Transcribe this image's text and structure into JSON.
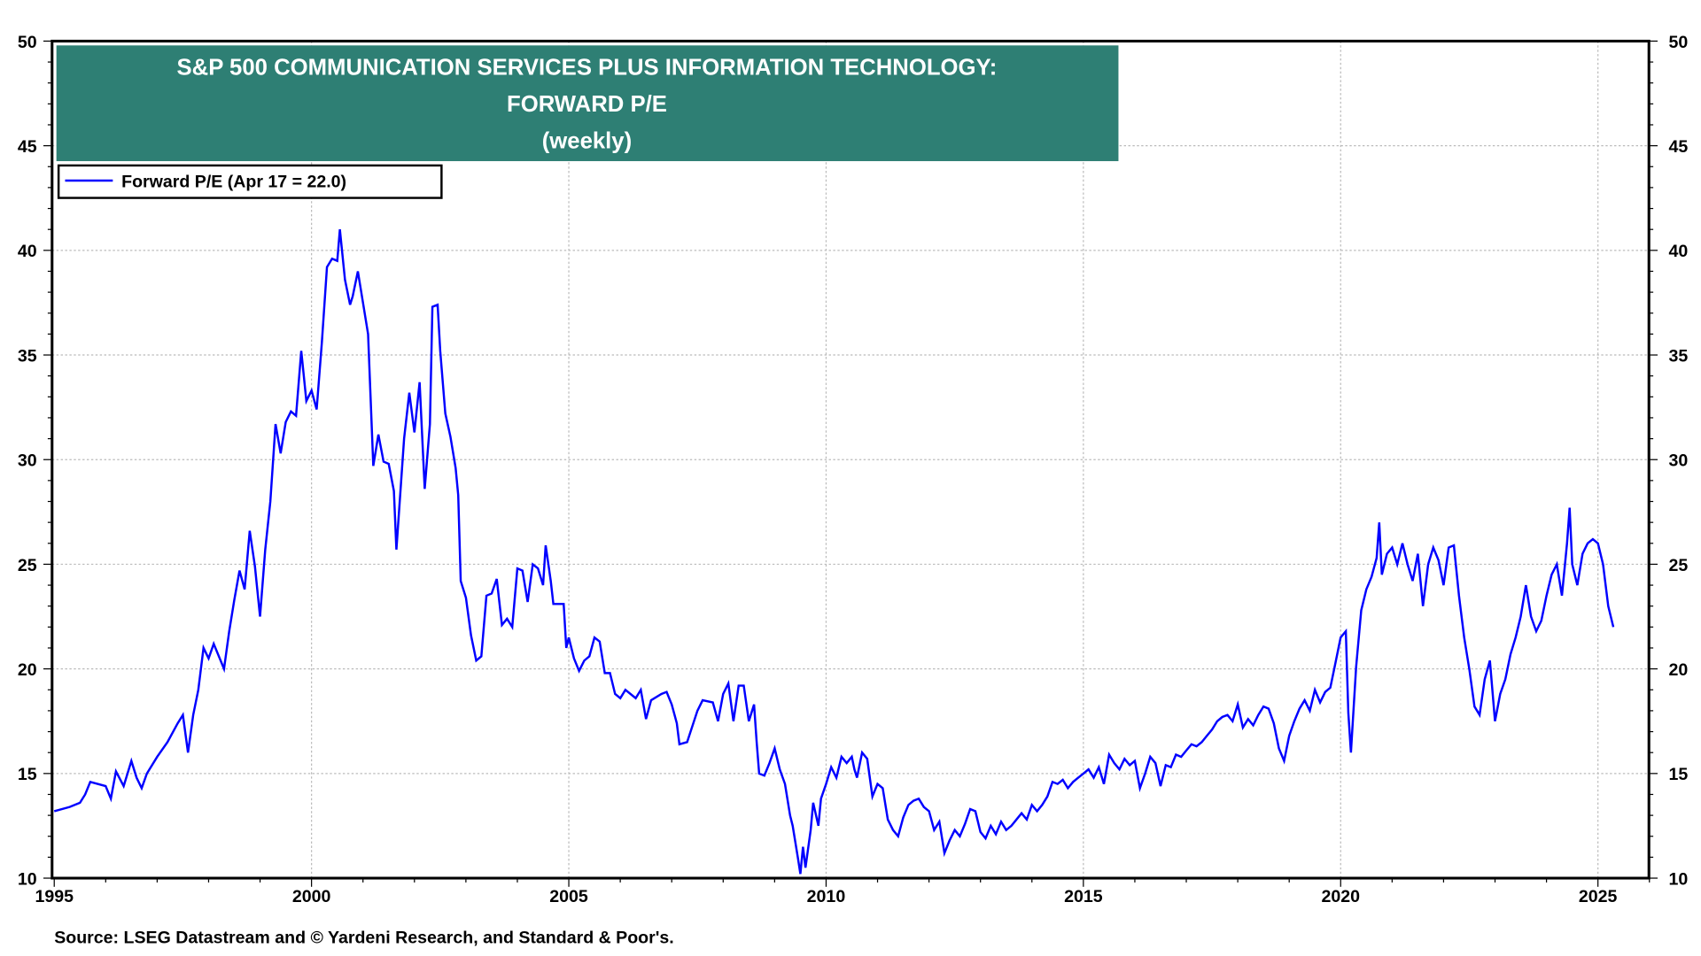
{
  "chart_data": {
    "type": "line",
    "title": "S&P 500 COMMUNICATION SERVICES PLUS INFORMATION TECHNOLOGY:",
    "title_line2": "FORWARD P/E",
    "subtitle": "(weekly)",
    "legend": {
      "label": "Forward P/E  (Apr 17 = 22.0)",
      "placement": "top-left"
    },
    "source": "Source: LSEG Datastream and © Yardeni Research, and Standard & Poor's.",
    "xlim": [
      1995,
      2026
    ],
    "ylim": [
      10,
      50
    ],
    "x_ticks": [
      "1995",
      "2000",
      "2005",
      "2010",
      "2015",
      "2020",
      "2025"
    ],
    "y_ticks": [
      "10",
      "15",
      "20",
      "25",
      "30",
      "35",
      "40",
      "45",
      "50"
    ],
    "grid": true,
    "colors": {
      "line": "#0000ff",
      "title_bg": "#2e7f74",
      "grid": "#bbbbbb"
    },
    "series": [
      {
        "name": "Forward P/E",
        "x": [
          1995.0,
          1995.3,
          1995.5,
          1995.6,
          1995.7,
          1996.0,
          1996.1,
          1996.2,
          1996.35,
          1996.5,
          1996.6,
          1996.7,
          1996.8,
          1997.0,
          1997.2,
          1997.4,
          1997.5,
          1997.6,
          1997.7,
          1997.8,
          1997.9,
          1998.0,
          1998.1,
          1998.3,
          1998.4,
          1998.5,
          1998.6,
          1998.7,
          1998.8,
          1998.9,
          1999.0,
          1999.1,
          1999.2,
          1999.3,
          1999.4,
          1999.5,
          1999.6,
          1999.7,
          1999.8,
          1999.9,
          2000.0,
          2000.1,
          2000.2,
          2000.3,
          2000.4,
          2000.5,
          2000.55,
          2000.65,
          2000.75,
          2000.8,
          2000.9,
          2001.0,
          2001.1,
          2001.2,
          2001.3,
          2001.4,
          2001.5,
          2001.6,
          2001.65,
          2001.8,
          2001.9,
          2002.0,
          2002.1,
          2002.2,
          2002.3,
          2002.35,
          2002.45,
          2002.5,
          2002.6,
          2002.7,
          2002.8,
          2002.85,
          2002.9,
          2003.0,
          2003.1,
          2003.2,
          2003.3,
          2003.4,
          2003.5,
          2003.6,
          2003.7,
          2003.8,
          2003.9,
          2004.0,
          2004.1,
          2004.2,
          2004.3,
          2004.4,
          2004.5,
          2004.55,
          2004.65,
          2004.7,
          2004.9,
          2004.95,
          2005.0,
          2005.1,
          2005.2,
          2005.3,
          2005.4,
          2005.5,
          2005.6,
          2005.7,
          2005.8,
          2005.9,
          2006.0,
          2006.1,
          2006.3,
          2006.4,
          2006.5,
          2006.6,
          2006.8,
          2006.9,
          2007.0,
          2007.1,
          2007.15,
          2007.3,
          2007.5,
          2007.6,
          2007.8,
          2007.9,
          2008.0,
          2008.1,
          2008.2,
          2008.3,
          2008.4,
          2008.5,
          2008.6,
          2008.65,
          2008.7,
          2008.8,
          2008.9,
          2009.0,
          2009.1,
          2009.2,
          2009.3,
          2009.35,
          2009.45,
          2009.5,
          2009.55,
          2009.6,
          2009.7,
          2009.75,
          2009.85,
          2009.9,
          2010.0,
          2010.1,
          2010.2,
          2010.3,
          2010.4,
          2010.5,
          2010.55,
          2010.6,
          2010.7,
          2010.8,
          2010.9,
          2011.0,
          2011.1,
          2011.2,
          2011.3,
          2011.4,
          2011.5,
          2011.6,
          2011.7,
          2011.8,
          2011.9,
          2012.0,
          2012.1,
          2012.2,
          2012.3,
          2012.4,
          2012.5,
          2012.6,
          2012.7,
          2012.8,
          2012.9,
          2013.0,
          2013.1,
          2013.2,
          2013.3,
          2013.4,
          2013.5,
          2013.6,
          2013.7,
          2013.8,
          2013.9,
          2014.0,
          2014.1,
          2014.2,
          2014.3,
          2014.4,
          2014.5,
          2014.6,
          2014.7,
          2014.8,
          2014.9,
          2015.0,
          2015.1,
          2015.2,
          2015.3,
          2015.4,
          2015.5,
          2015.6,
          2015.7,
          2015.8,
          2015.9,
          2016.0,
          2016.1,
          2016.2,
          2016.3,
          2016.4,
          2016.5,
          2016.6,
          2016.7,
          2016.8,
          2016.9,
          2017.0,
          2017.1,
          2017.2,
          2017.3,
          2017.4,
          2017.5,
          2017.6,
          2017.7,
          2017.8,
          2017.9,
          2018.0,
          2018.1,
          2018.2,
          2018.3,
          2018.4,
          2018.5,
          2018.6,
          2018.7,
          2018.8,
          2018.9,
          2019.0,
          2019.1,
          2019.2,
          2019.3,
          2019.4,
          2019.5,
          2019.6,
          2019.7,
          2019.8,
          2019.9,
          2020.0,
          2020.1,
          2020.15,
          2020.2,
          2020.3,
          2020.4,
          2020.5,
          2020.6,
          2020.7,
          2020.75,
          2020.8,
          2020.9,
          2021.0,
          2021.1,
          2021.2,
          2021.3,
          2021.4,
          2021.5,
          2021.6,
          2021.7,
          2021.8,
          2021.9,
          2022.0,
          2022.1,
          2022.2,
          2022.3,
          2022.4,
          2022.5,
          2022.6,
          2022.7,
          2022.8,
          2022.9,
          2023.0,
          2023.1,
          2023.2,
          2023.3,
          2023.4,
          2023.5,
          2023.6,
          2023.7,
          2023.8,
          2023.9,
          2024.0,
          2024.1,
          2024.2,
          2024.3,
          2024.4,
          2024.45,
          2024.5,
          2024.6,
          2024.7,
          2024.8,
          2024.9,
          2025.0,
          2025.1,
          2025.2,
          2025.3
        ],
        "y": [
          13.2,
          13.4,
          13.6,
          14.0,
          14.6,
          14.4,
          13.8,
          15.1,
          14.4,
          15.6,
          14.8,
          14.3,
          15.0,
          15.8,
          16.5,
          17.4,
          17.8,
          16.0,
          17.8,
          19.0,
          21.0,
          20.5,
          21.2,
          20.0,
          21.8,
          23.3,
          24.7,
          23.8,
          26.6,
          24.9,
          22.5,
          25.7,
          28.0,
          31.7,
          30.3,
          31.8,
          32.3,
          32.1,
          35.2,
          32.8,
          33.3,
          32.4,
          35.6,
          39.2,
          39.6,
          39.5,
          41.0,
          38.6,
          37.4,
          37.8,
          39.0,
          37.5,
          36.0,
          29.7,
          31.2,
          29.9,
          29.8,
          28.5,
          25.7,
          31.0,
          33.2,
          31.3,
          33.7,
          28.6,
          31.7,
          37.3,
          37.4,
          35.2,
          32.2,
          31.1,
          29.6,
          28.3,
          24.2,
          23.4,
          21.6,
          20.4,
          20.6,
          23.5,
          23.6,
          24.3,
          22.1,
          22.4,
          22.0,
          24.8,
          24.7,
          23.2,
          25.0,
          24.8,
          24.0,
          25.9,
          24.2,
          23.1,
          23.1,
          21.0,
          21.5,
          20.5,
          19.9,
          20.4,
          20.6,
          21.5,
          21.3,
          19.8,
          19.8,
          18.8,
          18.6,
          19.0,
          18.6,
          19.0,
          17.6,
          18.5,
          18.8,
          18.9,
          18.3,
          17.4,
          16.4,
          16.5,
          18.0,
          18.5,
          18.4,
          17.5,
          18.8,
          19.3,
          17.5,
          19.2,
          19.2,
          17.5,
          18.3,
          16.5,
          15.0,
          14.9,
          15.5,
          16.2,
          15.2,
          14.5,
          13.0,
          12.5,
          11.0,
          10.2,
          11.5,
          10.5,
          12.3,
          13.6,
          12.5,
          13.8,
          14.5,
          15.3,
          14.8,
          15.8,
          15.5,
          15.8,
          15.2,
          14.8,
          16.0,
          15.7,
          13.9,
          14.5,
          14.3,
          12.8,
          12.3,
          12.0,
          12.9,
          13.5,
          13.7,
          13.8,
          13.4,
          13.2,
          12.3,
          12.7,
          11.2,
          11.8,
          12.3,
          12.0,
          12.6,
          13.3,
          13.2,
          12.2,
          11.9,
          12.5,
          12.1,
          12.7,
          12.3,
          12.5,
          12.8,
          13.1,
          12.8,
          13.5,
          13.2,
          13.5,
          13.9,
          14.6,
          14.5,
          14.7,
          14.3,
          14.6,
          14.8,
          15.0,
          15.2,
          14.8,
          15.3,
          14.5,
          15.9,
          15.5,
          15.2,
          15.7,
          15.4,
          15.6,
          14.3,
          15.0,
          15.8,
          15.5,
          14.4,
          15.4,
          15.3,
          15.9,
          15.8,
          16.1,
          16.4,
          16.3,
          16.5,
          16.8,
          17.1,
          17.5,
          17.7,
          17.8,
          17.5,
          18.3,
          17.2,
          17.6,
          17.3,
          17.8,
          18.2,
          18.1,
          17.4,
          16.2,
          15.6,
          16.8,
          17.5,
          18.1,
          18.5,
          18.0,
          19.0,
          18.4,
          18.9,
          19.1,
          20.3,
          21.5,
          21.8,
          17.9,
          16.0,
          20.1,
          22.8,
          23.8,
          24.4,
          25.3,
          27.0,
          24.5,
          25.5,
          25.8,
          25.0,
          26.0,
          25.0,
          24.2,
          25.5,
          23.0,
          25.0,
          25.8,
          25.2,
          24.0,
          25.8,
          25.9,
          23.5,
          21.5,
          20.0,
          18.2,
          17.8,
          19.5,
          20.4,
          17.5,
          18.8,
          19.5,
          20.7,
          21.5,
          22.5,
          24.0,
          22.5,
          21.8,
          22.3,
          23.5,
          24.5,
          25.0,
          23.5,
          26.0,
          27.7,
          25.0,
          24.0,
          25.5,
          26.0,
          26.2,
          26.0,
          25.0,
          23.0,
          22.0
        ]
      }
    ]
  }
}
